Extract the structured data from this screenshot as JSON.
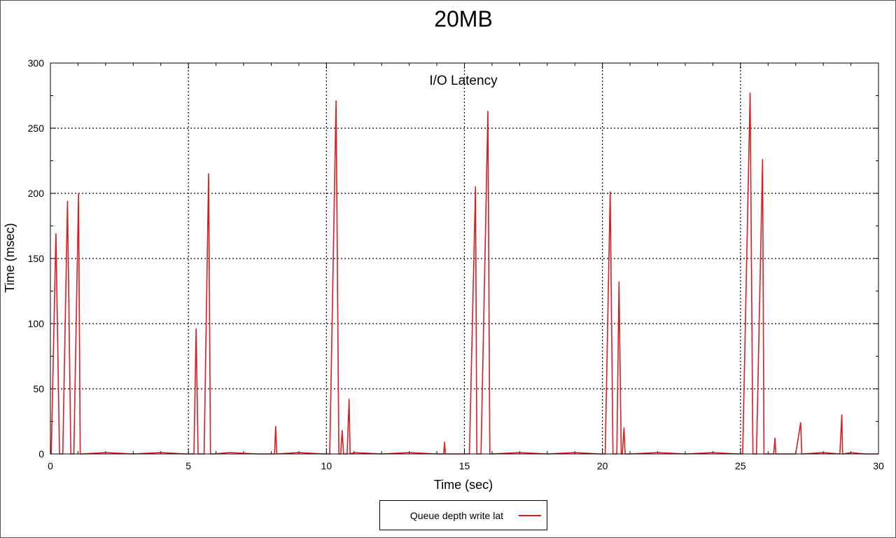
{
  "chart_data": {
    "type": "line",
    "title": "20MB",
    "subtitle": "I/O Latency",
    "xlabel": "Time (sec)",
    "ylabel": "Time (msec)",
    "xlim": [
      0,
      30
    ],
    "ylim": [
      0,
      300
    ],
    "xticks": [
      0,
      5,
      10,
      15,
      20,
      25,
      30
    ],
    "yticks": [
      0,
      50,
      100,
      150,
      200,
      250,
      300
    ],
    "grid": true,
    "legend_position": "bottom-center",
    "series": [
      {
        "name": "Queue depth write lat",
        "color": "#d81e1e",
        "x": [
          0,
          0.03,
          0.2,
          0.33,
          0.45,
          0.62,
          0.74,
          0.85,
          1.02,
          1.08,
          1.15,
          2.0,
          3.0,
          4.0,
          4.9,
          5.05,
          5.2,
          5.28,
          5.35,
          5.5,
          5.57,
          5.73,
          5.8,
          5.9,
          6.5,
          7.5,
          8.12,
          8.16,
          8.2,
          9.0,
          9.9,
          10.05,
          10.12,
          10.35,
          10.45,
          10.52,
          10.57,
          10.62,
          10.75,
          10.82,
          10.86,
          11.0,
          12.0,
          13.0,
          14.0,
          14.25,
          14.28,
          14.31,
          14.5,
          15.0,
          15.18,
          15.4,
          15.45,
          15.52,
          15.6,
          15.85,
          15.92,
          16.0,
          17.0,
          18.0,
          19.0,
          19.9,
          20.05,
          20.1,
          20.28,
          20.38,
          20.44,
          20.52,
          20.6,
          20.68,
          20.72,
          20.78,
          20.82,
          21.0,
          22.0,
          23.0,
          24.0,
          24.9,
          25.02,
          25.08,
          25.35,
          25.45,
          25.52,
          25.58,
          25.8,
          25.85,
          26.0,
          26.2,
          26.25,
          26.28,
          26.5,
          27.0,
          27.18,
          27.22,
          27.26,
          28.0,
          28.6,
          28.67,
          28.7,
          28.74,
          29.0,
          29.5,
          30.0
        ],
        "y": [
          0,
          0,
          169,
          0,
          0,
          194,
          0,
          0,
          200,
          0,
          0,
          1,
          0,
          1,
          0,
          0,
          0,
          96,
          0,
          0,
          0,
          215,
          0,
          0,
          1,
          0,
          0,
          21,
          0,
          1,
          0,
          0,
          0,
          271,
          0,
          0,
          18,
          0,
          0,
          42,
          0,
          1,
          0,
          1,
          0,
          0,
          9,
          0,
          0,
          0,
          0,
          205,
          0,
          0,
          0,
          263,
          0,
          0,
          1,
          0,
          1,
          0,
          0,
          0,
          201,
          0,
          0,
          0,
          132,
          0,
          0,
          20,
          0,
          0,
          1,
          0,
          1,
          0,
          0,
          0,
          277,
          0,
          0,
          0,
          226,
          0,
          0,
          0,
          12,
          0,
          0,
          0,
          24,
          0,
          0,
          1,
          0,
          30,
          0,
          0,
          1,
          0,
          0
        ]
      }
    ]
  }
}
